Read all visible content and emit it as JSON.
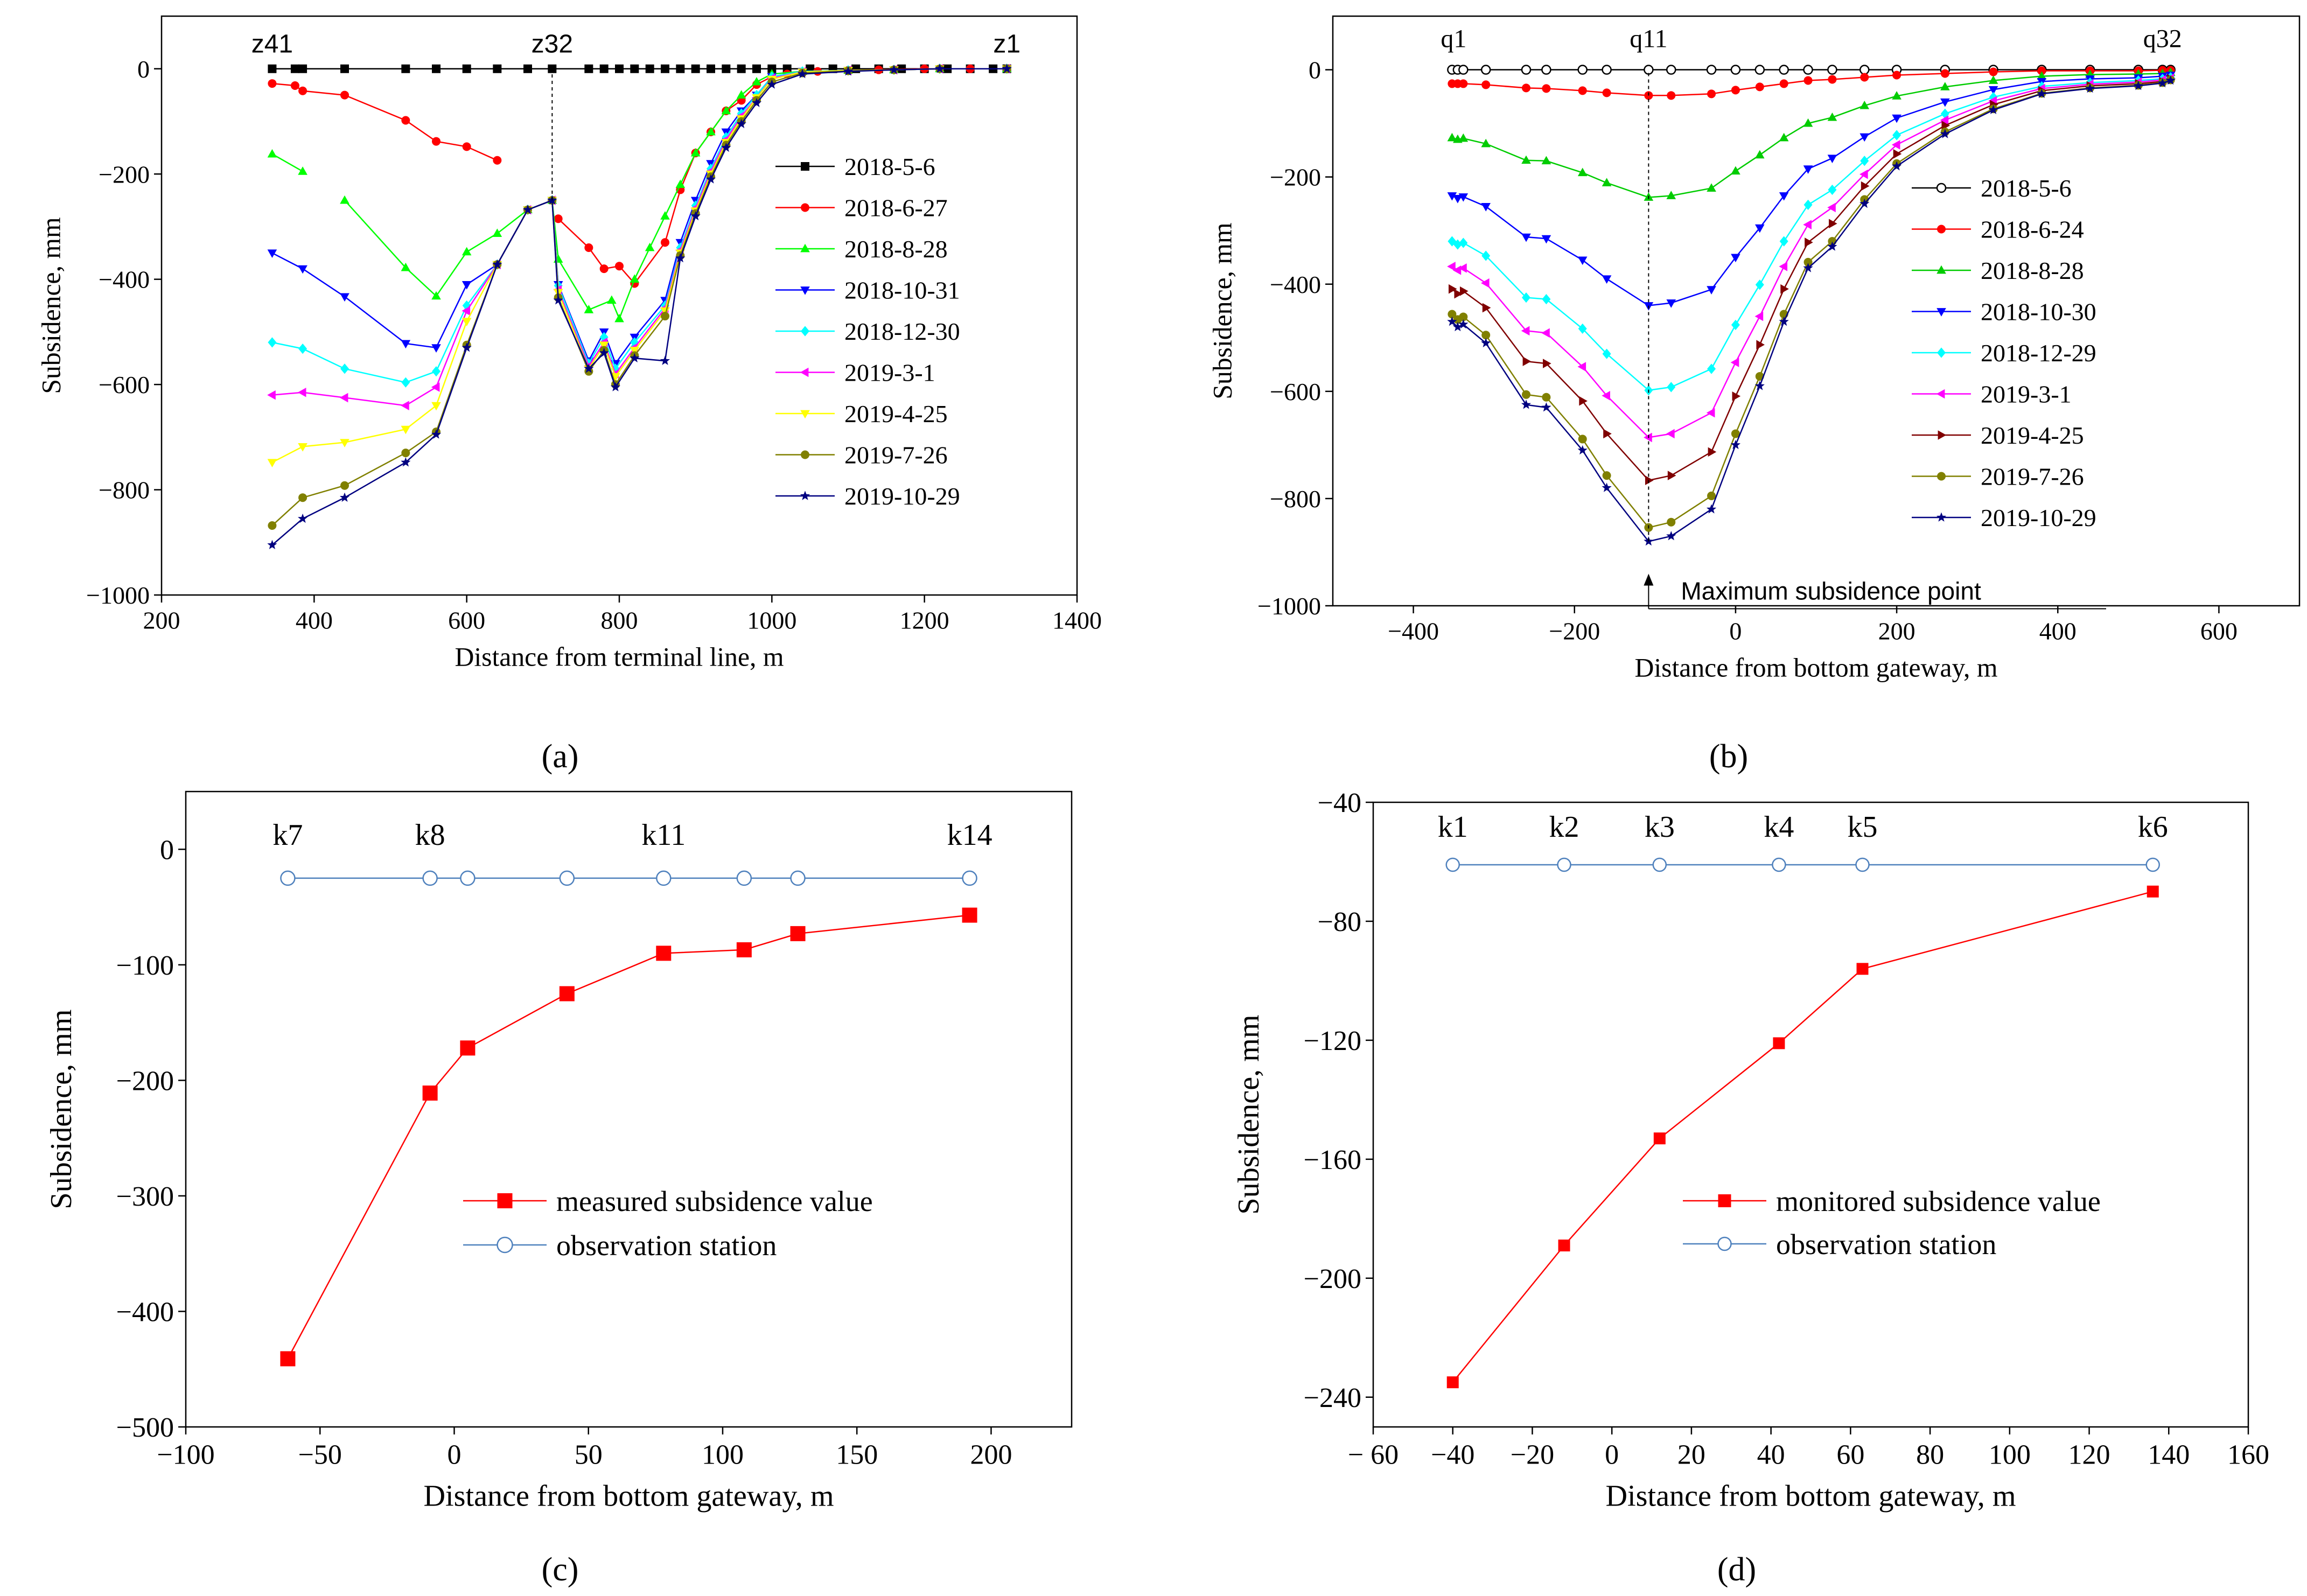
{
  "chart_data": [
    {
      "id": "a",
      "type": "line",
      "panel_label": "(a)",
      "xlabel": "Distance from terminal line, m",
      "ylabel": "Subsidence, mm",
      "xlim": [
        200,
        1400
      ],
      "ylim": [
        -1000,
        100
      ],
      "xticks": [
        200,
        400,
        600,
        800,
        1000,
        1200,
        1400
      ],
      "yticks": [
        -1000,
        -800,
        -600,
        -400,
        -200,
        0
      ],
      "xtick_labels": [
        "200",
        "400",
        "600",
        "800",
        "1000",
        "1200",
        "1400"
      ],
      "ytick_labels": [
        "−1000",
        "−800",
        "−600",
        "−400",
        "−200",
        "0"
      ],
      "point_labels": [
        {
          "text": "z41",
          "x": 345
        },
        {
          "text": "z32",
          "x": 712
        },
        {
          "text": "z1",
          "x": 1308
        }
      ],
      "vline": {
        "x": 712,
        "y_from": -250,
        "y_to": 0
      },
      "series": [
        {
          "name": "2018-5-6",
          "color": "#000000",
          "marker": "square",
          "x": [
            345,
            375,
            385,
            440,
            520,
            560,
            600,
            640,
            680,
            712,
            760,
            780,
            800,
            820,
            840,
            860,
            880,
            900,
            920,
            940,
            960,
            980,
            1000,
            1020,
            1050,
            1080,
            1110,
            1140,
            1170,
            1200,
            1230,
            1260,
            1290,
            1308
          ],
          "y": [
            0,
            0,
            0,
            0,
            0,
            0,
            0,
            0,
            0,
            0,
            0,
            0,
            0,
            0,
            0,
            0,
            0,
            0,
            0,
            0,
            0,
            0,
            0,
            0,
            0,
            0,
            0,
            0,
            0,
            0,
            0,
            0,
            0,
            0
          ]
        },
        {
          "name": "2018-6-27",
          "color": "#ff0000",
          "marker": "circle",
          "x": [
            345,
            375,
            385,
            440,
            520,
            560,
            600,
            640
          ],
          "y": [
            -28,
            -32,
            -42,
            -50,
            -98,
            -138,
            -148,
            -174
          ],
          "x2": [
            720,
            760,
            780,
            800,
            820,
            860,
            880,
            900,
            920,
            940,
            960,
            980,
            1000,
            1020,
            1060,
            1100,
            1140,
            1200,
            1260,
            1308
          ],
          "y2": [
            -285,
            -340,
            -380,
            -375,
            -408,
            -330,
            -230,
            -160,
            -120,
            -80,
            -60,
            -30,
            -15,
            -10,
            -5,
            -3,
            -2,
            0,
            0,
            0
          ]
        },
        {
          "name": "2018-8-28",
          "color": "#00ff00",
          "marker": "triangle-up",
          "x": [
            345,
            385,
            440,
            520,
            560,
            600,
            640,
            680,
            712,
            720,
            760,
            790,
            800,
            820,
            840,
            860,
            880,
            900,
            920,
            940,
            960,
            980,
            1000,
            1040,
            1100,
            1160,
            1220,
            1308
          ],
          "y": [
            -162,
            -195,
            -250,
            -378,
            -432,
            -348,
            -313,
            -268,
            -250,
            -362,
            -458,
            -440,
            -475,
            -400,
            -340,
            -280,
            -220,
            -160,
            -120,
            -80,
            -50,
            -25,
            -10,
            -5,
            -3,
            -2,
            0,
            0
          ],
          "gap_after": 1
        }
      ]
    },
    {
      "id": "a2",
      "type": "line",
      "series_more": [
        {
          "name": "2018-10-31",
          "color": "#0000ff",
          "marker": "triangle-down",
          "x": [
            345,
            385,
            440,
            520,
            560,
            600,
            640,
            680,
            712,
            720,
            760,
            780,
            795,
            820,
            860,
            880,
            900,
            920,
            940,
            960,
            980,
            1000,
            1040,
            1100,
            1160,
            1220,
            1308
          ],
          "y": [
            -350,
            -380,
            -433,
            -522,
            -530,
            -410,
            -372,
            -268,
            -250,
            -410,
            -555,
            -500,
            -560,
            -510,
            -440,
            -330,
            -250,
            -180,
            -120,
            -80,
            -50,
            -15,
            -5,
            -3,
            -2,
            0,
            0
          ]
        },
        {
          "name": "2018-12-30",
          "color": "#00ffff",
          "marker": "diamond",
          "x": [
            345,
            385,
            440,
            520,
            560,
            600,
            640,
            680,
            712,
            720,
            760,
            780,
            795,
            820,
            860,
            880,
            900,
            920,
            940,
            960,
            980,
            1000,
            1040,
            1100,
            1160,
            1220,
            1308
          ],
          "y": [
            -520,
            -532,
            -570,
            -596,
            -575,
            -450,
            -372,
            -268,
            -250,
            -412,
            -560,
            -510,
            -570,
            -520,
            -450,
            -340,
            -260,
            -190,
            -130,
            -85,
            -50,
            -15,
            -5,
            -3,
            -2,
            0,
            0
          ]
        },
        {
          "name": "2019-3-1",
          "color": "#ff00ff",
          "marker": "triangle-left",
          "x": [
            345,
            385,
            440,
            520,
            560,
            600,
            640,
            680,
            712,
            720,
            760,
            780,
            795,
            820,
            860,
            880,
            900,
            920,
            940,
            960,
            980,
            1000,
            1040,
            1100,
            1160,
            1220,
            1308
          ],
          "y": [
            -620,
            -615,
            -625,
            -640,
            -605,
            -460,
            -372,
            -268,
            -250,
            -420,
            -565,
            -520,
            -580,
            -530,
            -455,
            -345,
            -265,
            -195,
            -135,
            -90,
            -55,
            -18,
            -6,
            -3,
            -2,
            0,
            0
          ]
        },
        {
          "name": "2019-4-25",
          "color": "#ffff00",
          "marker": "triangle-down",
          "x": [
            345,
            385,
            440,
            520,
            560,
            600,
            640,
            680,
            712,
            720,
            760,
            780,
            795,
            820,
            860,
            880,
            900,
            920,
            940,
            960,
            980,
            1000,
            1040,
            1100,
            1160,
            1220,
            1308
          ],
          "y": [
            -748,
            -718,
            -710,
            -685,
            -640,
            -480,
            -372,
            -268,
            -250,
            -425,
            -570,
            -525,
            -585,
            -535,
            -460,
            -350,
            -270,
            -200,
            -140,
            -95,
            -55,
            -20,
            -6,
            -3,
            -2,
            0,
            0
          ]
        },
        {
          "name": "2019-7-26",
          "color": "#808000",
          "marker": "circle",
          "x": [
            345,
            385,
            440,
            520,
            560,
            600,
            640,
            680,
            712,
            720,
            760,
            780,
            795,
            820,
            860,
            880,
            900,
            920,
            940,
            960,
            980,
            1000,
            1040,
            1100,
            1160,
            1220,
            1308
          ],
          "y": [
            -868,
            -815,
            -792,
            -730,
            -690,
            -525,
            -372,
            -268,
            -250,
            -435,
            -575,
            -535,
            -600,
            -545,
            -470,
            -355,
            -275,
            -205,
            -145,
            -100,
            -60,
            -25,
            -8,
            -4,
            -2,
            0,
            0
          ]
        },
        {
          "name": "2019-10-29",
          "color": "#000080",
          "marker": "star",
          "x": [
            345,
            385,
            440,
            520,
            560,
            600,
            640,
            680,
            712,
            720,
            760,
            780,
            795,
            820,
            860,
            880,
            900,
            920,
            940,
            960,
            980,
            1000,
            1040,
            1100,
            1160,
            1220,
            1308
          ],
          "y": [
            -905,
            -855,
            -815,
            -748,
            -695,
            -530,
            -372,
            -268,
            -250,
            -440,
            -570,
            -540,
            -605,
            -550,
            -555,
            -360,
            -280,
            -210,
            -150,
            -105,
            -65,
            -30,
            -10,
            -5,
            -2,
            0,
            0
          ]
        }
      ]
    },
    {
      "id": "b",
      "type": "line",
      "panel_label": "(b)",
      "xlabel": "Distance from bottom gateway, m",
      "ylabel": "Subsidence, mm",
      "xlim": [
        -500,
        700
      ],
      "ylim": [
        -1000,
        100
      ],
      "xticks": [
        -400,
        -200,
        0,
        200,
        400,
        600
      ],
      "yticks": [
        -1000,
        -800,
        -600,
        -400,
        -200,
        0
      ],
      "xtick_labels": [
        "−400",
        "−200",
        "0",
        "200",
        "400",
        "600"
      ],
      "ytick_labels": [
        "−1000",
        "−800",
        "−600",
        "−400",
        "−200",
        "0"
      ],
      "point_labels": [
        {
          "text": "q1",
          "x": -350
        },
        {
          "text": "q11",
          "x": -108
        },
        {
          "text": "q32",
          "x": 530
        }
      ],
      "vline": {
        "x": -108,
        "y_from": -880,
        "y_to": 0
      },
      "annotation": {
        "text": "Maximum subsidence point",
        "x": -108,
        "y": -880
      },
      "series": [
        {
          "name": "2018-5-6",
          "color": "#000000",
          "marker": "open-circle",
          "scale": 0
        },
        {
          "name": "2018-6-24",
          "color": "#ff0000",
          "marker": "circle",
          "scale": 0.055
        },
        {
          "name": "2018-8-28",
          "color": "#00cc00",
          "marker": "triangle-up",
          "scale": 0.27
        },
        {
          "name": "2018-10-30",
          "color": "#0000ff",
          "marker": "triangle-down",
          "scale": 0.5
        },
        {
          "name": "2018-12-29",
          "color": "#00ffff",
          "marker": "diamond",
          "scale": 0.68
        },
        {
          "name": "2019-3-1",
          "color": "#ff00ff",
          "marker": "triangle-left",
          "scale": 0.78
        },
        {
          "name": "2019-4-25",
          "color": "#800000",
          "marker": "triangle-right",
          "scale": 0.87
        },
        {
          "name": "2019-7-26",
          "color": "#808000",
          "marker": "circle",
          "scale": 0.97
        },
        {
          "name": "2019-10-29",
          "color": "#000080",
          "marker": "star",
          "scale": 1.0
        }
      ],
      "base_x": [
        -352,
        -345,
        -338,
        -310,
        -260,
        -235,
        -190,
        -160,
        -108,
        -80,
        -30,
        0,
        30,
        60,
        90,
        120,
        160,
        200,
        260,
        320,
        380,
        440,
        500,
        530,
        540
      ],
      "base_y": [
        -470,
        -480,
        -475,
        -510,
        -625,
        -630,
        -710,
        -780,
        -880,
        -870,
        -820,
        -700,
        -590,
        -470,
        -370,
        -330,
        -250,
        -180,
        -120,
        -75,
        -45,
        -35,
        -30,
        -25,
        -20
      ]
    },
    {
      "id": "c",
      "type": "line",
      "panel_label": "(c)",
      "xlabel": "Distance from bottom gateway, m",
      "ylabel": "Subsidence, mm",
      "xlim": [
        -100,
        230
      ],
      "ylim": [
        -500,
        50
      ],
      "xticks": [
        -100,
        -50,
        0,
        50,
        100,
        150,
        200
      ],
      "yticks": [
        -500,
        -400,
        -300,
        -200,
        -100,
        0
      ],
      "xtick_labels": [
        "−100",
        "−50",
        "0",
        "50",
        "100",
        "150",
        "200"
      ],
      "ytick_labels": [
        "−500",
        "−400",
        "−300",
        "−200",
        "−100",
        "0"
      ],
      "point_labels": [
        {
          "text": "k7",
          "x": -62
        },
        {
          "text": "k8",
          "x": -9
        },
        {
          "text": "k11",
          "x": 78
        },
        {
          "text": "k14",
          "x": 192
        }
      ],
      "legend_position": "center",
      "series": [
        {
          "name": "measured subsidence value",
          "color": "#ff0000",
          "marker": "square",
          "x": [
            -62,
            -9,
            5,
            42,
            78,
            108,
            128,
            192
          ],
          "y": [
            -441,
            -211,
            -172,
            -125,
            -90,
            -87,
            -73,
            -57
          ]
        },
        {
          "name": "observation station",
          "color": "#4f81bd",
          "marker": "open-circle",
          "x": [
            -62,
            -9,
            5,
            42,
            78,
            108,
            128,
            192
          ],
          "y": [
            -25,
            -25,
            -25,
            -25,
            -25,
            -25,
            -25,
            -25
          ]
        }
      ]
    },
    {
      "id": "d",
      "type": "line",
      "panel_label": "(d)",
      "xlabel": "Distance from bottom gateway, m",
      "ylabel": "Subsidence, mm",
      "xlim": [
        -60,
        160
      ],
      "ylim": [
        -250,
        -40
      ],
      "xticks": [
        -60,
        -40,
        -20,
        0,
        20,
        40,
        60,
        80,
        100,
        120,
        140,
        160
      ],
      "yticks": [
        -240,
        -200,
        -160,
        -120,
        -80,
        -40
      ],
      "xtick_labels": [
        "− 60",
        "−40",
        "−20",
        "0",
        "20",
        "40",
        "60",
        "80",
        "100",
        "120",
        "140",
        "160"
      ],
      "ytick_labels": [
        "−240",
        "−200",
        "−160",
        "−120",
        "−80",
        "−40"
      ],
      "point_labels": [
        {
          "text": "k1",
          "x": -40
        },
        {
          "text": "k2",
          "x": -12
        },
        {
          "text": "k3",
          "x": 12
        },
        {
          "text": "k4",
          "x": 42
        },
        {
          "text": "k5",
          "x": 63
        },
        {
          "text": "k6",
          "x": 136
        }
      ],
      "legend_position": "center",
      "series": [
        {
          "name": "monitored subsidence value",
          "color": "#ff0000",
          "marker": "square",
          "x": [
            -40,
            -12,
            12,
            42,
            63,
            136
          ],
          "y": [
            -235,
            -189,
            -153,
            -121,
            -96,
            -70
          ]
        },
        {
          "name": "observation station",
          "color": "#4f81bd",
          "marker": "open-circle",
          "x": [
            -40,
            -12,
            12,
            42,
            63,
            136
          ],
          "y": [
            -61,
            -61,
            -61,
            -61,
            -61,
            -61
          ]
        }
      ]
    }
  ]
}
